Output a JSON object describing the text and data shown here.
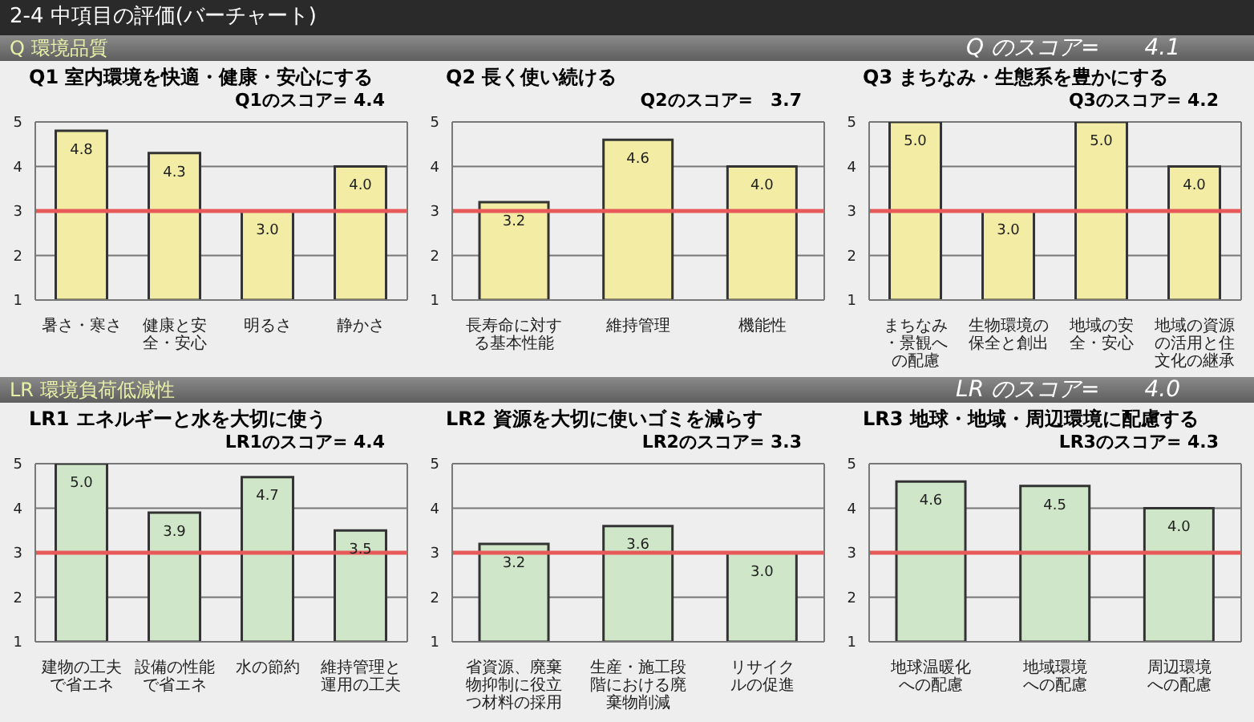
{
  "chart_data": [
    {
      "type": "bar",
      "title": "Q1 室内環境を快適・健康・安心にする",
      "subtitle": "Q1のスコア= 4.4",
      "annotations": [
        "2-4 中項目の評価(バーチャート)",
        "Q 環境品質",
        "Q のスコア=　　4.1"
      ],
      "categories": [
        "暑さ・寒さ",
        "健康と安全・安心",
        "明るさ",
        "静かさ"
      ],
      "values": [
        4.8,
        4.3,
        3.0,
        4.0
      ],
      "value_labels": [
        "4.8",
        "4.3",
        "3.0",
        "4.0"
      ],
      "color": "#f2eca4",
      "ylim": [
        1,
        5
      ],
      "yticks": [
        1,
        2,
        3,
        4,
        5
      ],
      "grid": "y",
      "ref_lines": [
        {
          "axis": "y",
          "value": 3,
          "color": "#e85a5a"
        }
      ]
    },
    {
      "type": "bar",
      "title": "Q2 長く使い続ける",
      "subtitle": "Q2のスコア=　3.7",
      "categories": [
        "長寿命に対する基本性能",
        "維持管理",
        "機能性"
      ],
      "values": [
        3.2,
        4.6,
        4.0
      ],
      "value_labels": [
        "3.2",
        "4.6",
        "4.0"
      ],
      "color": "#f2eca4",
      "ylim": [
        1,
        5
      ],
      "yticks": [
        1,
        2,
        3,
        4,
        5
      ],
      "grid": "y",
      "ref_lines": [
        {
          "axis": "y",
          "value": 3,
          "color": "#e85a5a"
        }
      ]
    },
    {
      "type": "bar",
      "title": "Q3 まちなみ・生態系を豊かにする",
      "subtitle": "Q3のスコア= 4.2",
      "categories": [
        "まちなみ・景観への配慮",
        "生物環境の保全と創出",
        "地域の安全・安心",
        "地域の資源の活用と住文化の継承"
      ],
      "values": [
        5.0,
        3.0,
        5.0,
        4.0
      ],
      "value_labels": [
        "5.0",
        "3.0",
        "5.0",
        "4.0"
      ],
      "color": "#f2eca4",
      "ylim": [
        1,
        5
      ],
      "yticks": [
        1,
        2,
        3,
        4,
        5
      ],
      "grid": "y",
      "ref_lines": [
        {
          "axis": "y",
          "value": 3,
          "color": "#e85a5a"
        }
      ]
    },
    {
      "type": "bar",
      "title": "LR1 エネルギーと水を大切に使う",
      "subtitle": "LR1のスコア= 4.4",
      "annotations": [
        "LR 環境負荷低減性",
        "LR のスコア=　　4.0"
      ],
      "categories": [
        "建物の工夫で省エネ",
        "設備の性能で省エネ",
        "水の節約",
        "維持管理と運用の工夫"
      ],
      "values": [
        5.0,
        3.9,
        4.7,
        3.5
      ],
      "value_labels": [
        "5.0",
        "3.9",
        "4.7",
        "3.5"
      ],
      "color": "#cfe6c8",
      "ylim": [
        1,
        5
      ],
      "yticks": [
        1,
        2,
        3,
        4,
        5
      ],
      "grid": "y",
      "ref_lines": [
        {
          "axis": "y",
          "value": 3,
          "color": "#e85a5a"
        }
      ]
    },
    {
      "type": "bar",
      "title": "LR2 資源を大切に使いゴミを減らす",
      "subtitle": "LR2のスコア= 3.3",
      "categories": [
        "省資源、廃棄物抑制に役立つ材料の採用",
        "生産・施工段階における廃棄物削減",
        "リサイクルの促進"
      ],
      "values": [
        3.2,
        3.6,
        3.0
      ],
      "value_labels": [
        "3.2",
        "3.6",
        "3.0"
      ],
      "color": "#cfe6c8",
      "ylim": [
        1,
        5
      ],
      "yticks": [
        1,
        2,
        3,
        4,
        5
      ],
      "grid": "y",
      "ref_lines": [
        {
          "axis": "y",
          "value": 3,
          "color": "#e85a5a"
        }
      ]
    },
    {
      "type": "bar",
      "title": "LR3 地球・地域・周辺環境に配慮する",
      "subtitle": "LR3のスコア= 4.3",
      "categories": [
        "地球温暖化への配慮",
        "地域環境への配慮",
        "周辺環境への配慮"
      ],
      "values": [
        4.6,
        4.5,
        4.0
      ],
      "value_labels": [
        "4.6",
        "4.5",
        "4.0"
      ],
      "color": "#cfe6c8",
      "ylim": [
        1,
        5
      ],
      "yticks": [
        1,
        2,
        3,
        4,
        5
      ],
      "grid": "y",
      "ref_lines": [
        {
          "axis": "y",
          "value": 3,
          "color": "#e85a5a"
        }
      ]
    }
  ]
}
